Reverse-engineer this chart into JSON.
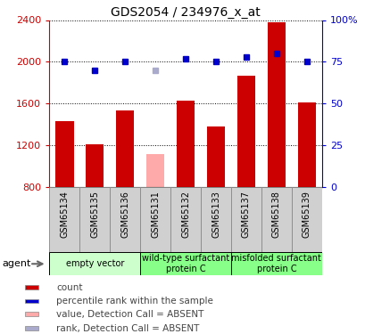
{
  "title": "GDS2054 / 234976_x_at",
  "samples": [
    "GSM65134",
    "GSM65135",
    "GSM65136",
    "GSM65131",
    "GSM65132",
    "GSM65133",
    "GSM65137",
    "GSM65138",
    "GSM65139"
  ],
  "bar_values": [
    1430,
    1210,
    1530,
    null,
    1630,
    1380,
    1870,
    2380,
    1610
  ],
  "bar_absent_values": [
    null,
    null,
    null,
    1120,
    null,
    null,
    null,
    null,
    null
  ],
  "bar_color_present": "#cc0000",
  "bar_color_absent": "#ffaaaa",
  "rank_values": [
    75,
    70,
    75,
    null,
    77,
    75,
    78,
    80,
    75
  ],
  "rank_absent_values": [
    null,
    null,
    null,
    70,
    null,
    null,
    null,
    null,
    null
  ],
  "rank_color_present": "#0000cc",
  "rank_color_absent": "#aaaacc",
  "ylim_left": [
    800,
    2400
  ],
  "ylim_right": [
    0,
    100
  ],
  "yticks_left": [
    800,
    1200,
    1600,
    2000,
    2400
  ],
  "yticks_right": [
    0,
    25,
    50,
    75,
    100
  ],
  "ytick_labels_right": [
    "0",
    "25",
    "50",
    "75",
    "100%"
  ],
  "group_ranges": [
    [
      0,
      2
    ],
    [
      3,
      5
    ],
    [
      6,
      8
    ]
  ],
  "group_labels": [
    "empty vector",
    "wild-type surfactant\nprotein C",
    "misfolded surfactant\nprotein C"
  ],
  "group_colors": [
    "#ccffcc",
    "#88ff88",
    "#88ff88"
  ],
  "agent_label": "agent",
  "legend_items": [
    {
      "label": "count",
      "color": "#cc0000"
    },
    {
      "label": "percentile rank within the sample",
      "color": "#0000cc"
    },
    {
      "label": "value, Detection Call = ABSENT",
      "color": "#ffaaaa"
    },
    {
      "label": "rank, Detection Call = ABSENT",
      "color": "#aaaacc"
    }
  ],
  "left_axis_color": "#cc0000",
  "right_axis_color": "#0000cc",
  "bar_width": 0.6,
  "sample_cell_color": "#d0d0d0",
  "sample_cell_edge": "#888888"
}
